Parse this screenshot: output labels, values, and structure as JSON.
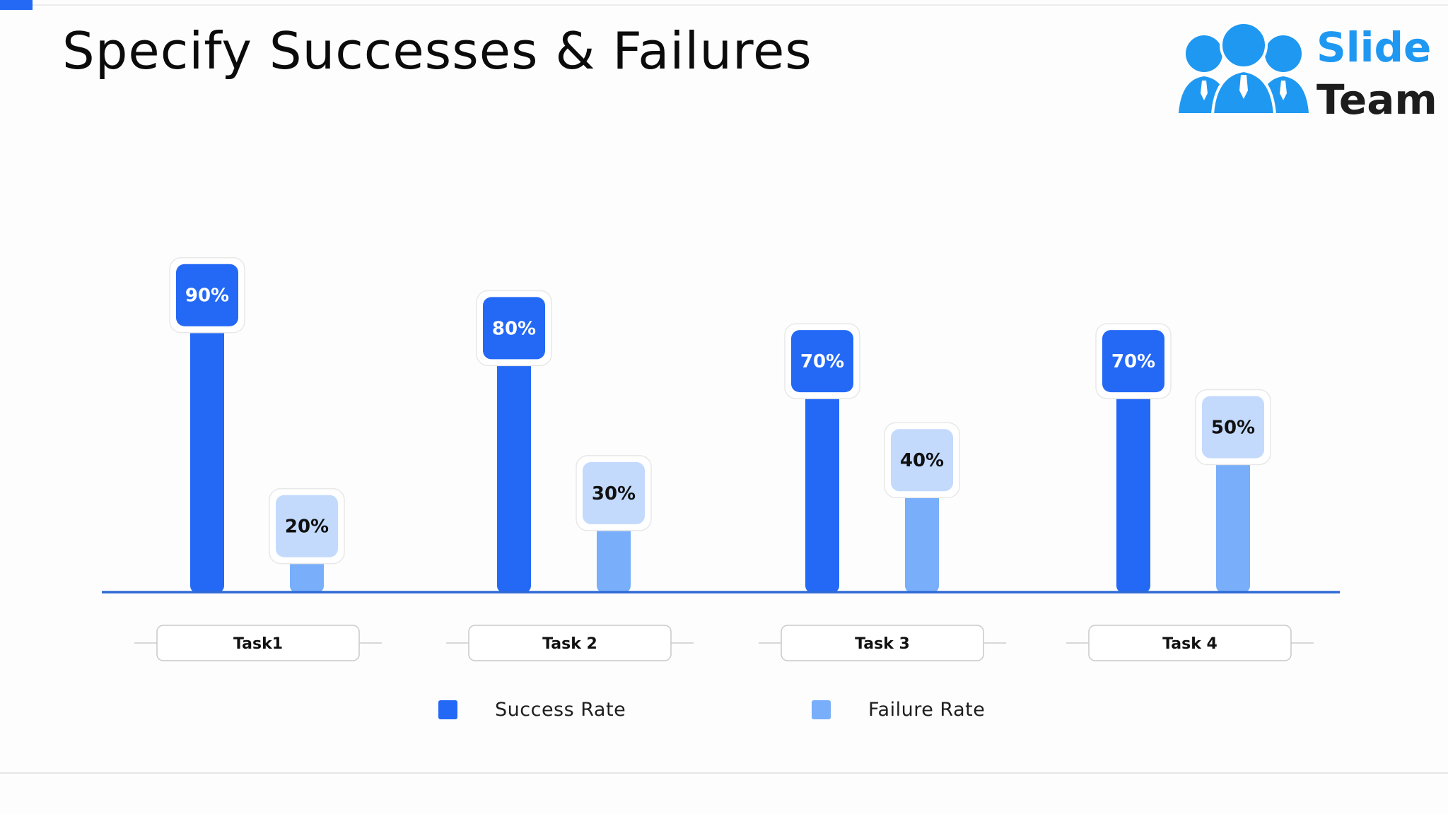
{
  "slide": {
    "title": "Specify Successes & Failures"
  },
  "logo": {
    "line1": "Slide",
    "line2": "Team",
    "color_primary": "#1f98f2",
    "color_text": "#1d1d1d"
  },
  "chart_data": {
    "type": "bar",
    "title": "",
    "categories": [
      "Task1",
      "Task 2",
      "Task 3",
      "Task 4"
    ],
    "series": [
      {
        "name": "Success Rate",
        "values": [
          90,
          80,
          70,
          70
        ],
        "color": "#2469f6",
        "label_bg": "#2469f6",
        "label_color": "#ffffff"
      },
      {
        "name": "Failure Rate",
        "values": [
          20,
          30,
          40,
          50
        ],
        "color": "#78aefa",
        "label_bg": "#c3dafd",
        "label_color": "#111111"
      }
    ],
    "value_suffix": "%",
    "ylim": [
      0,
      100
    ],
    "axis_color": "#2f6bd6",
    "legend_position": "bottom",
    "grid": false
  }
}
